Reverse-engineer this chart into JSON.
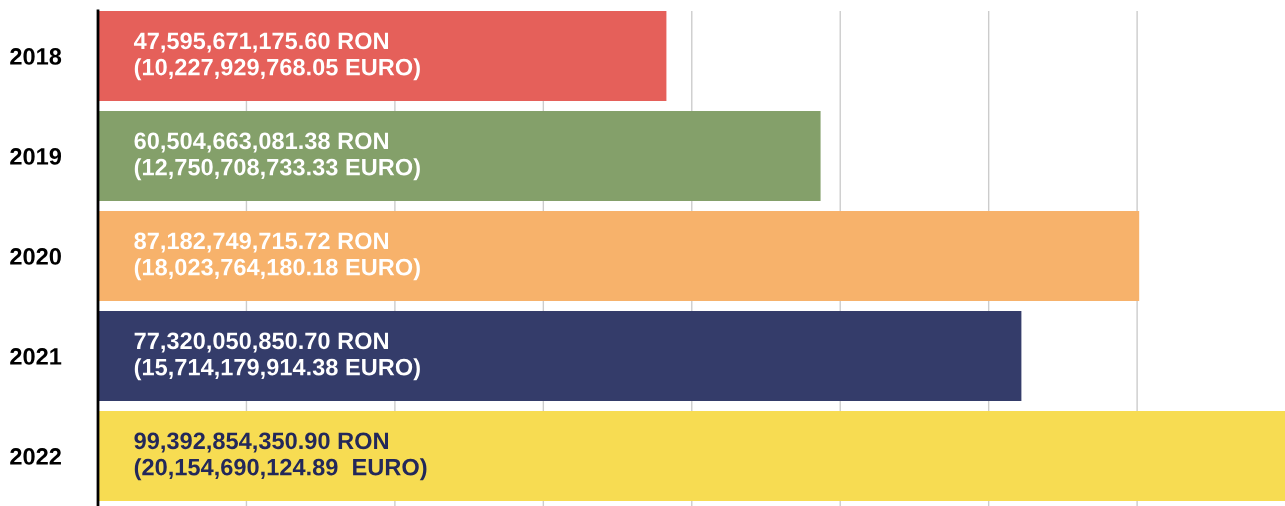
{
  "chart_data": {
    "type": "bar",
    "orientation": "horizontal",
    "categories": [
      "2018",
      "2019",
      "2020",
      "2021",
      "2022"
    ],
    "values": [
      47595671175.6,
      60504663081.38,
      87182749715.72,
      77320050850.7,
      99392854350.9
    ],
    "colors": [
      "#e5605a",
      "#84a06a",
      "#f7b26b",
      "#343c6a",
      "#f7dc52"
    ],
    "value_labels": [
      "47,595,671,175.60 RON\n(10,227,929,768.05 EURO)",
      "60,504,663,081.38 RON\n(12,750,708,733.33 EURO)",
      "87,182,749,715.72 RON\n(18,023,764,180.18 EURO)",
      "77,320,050,850.70 RON\n(15,714,179,914.38 EURO)",
      "99,392,854,350.90 RON\n(20,154,690,124.89  EURO)"
    ],
    "xlim": [
      0,
      99392854350.9
    ],
    "xticks": [
      {
        "value": 12430000000,
        "label": null
      },
      {
        "value": 24860000000,
        "label": null
      },
      {
        "value": 37290000000,
        "label": null
      },
      {
        "value": 49720000000,
        "label": null
      },
      {
        "value": 62150000000,
        "label": null
      },
      {
        "value": 74580000000,
        "label": null
      },
      {
        "value": 87010000000,
        "label": null
      }
    ],
    "grid": "x",
    "tick_labels": "y",
    "legend": false
  }
}
